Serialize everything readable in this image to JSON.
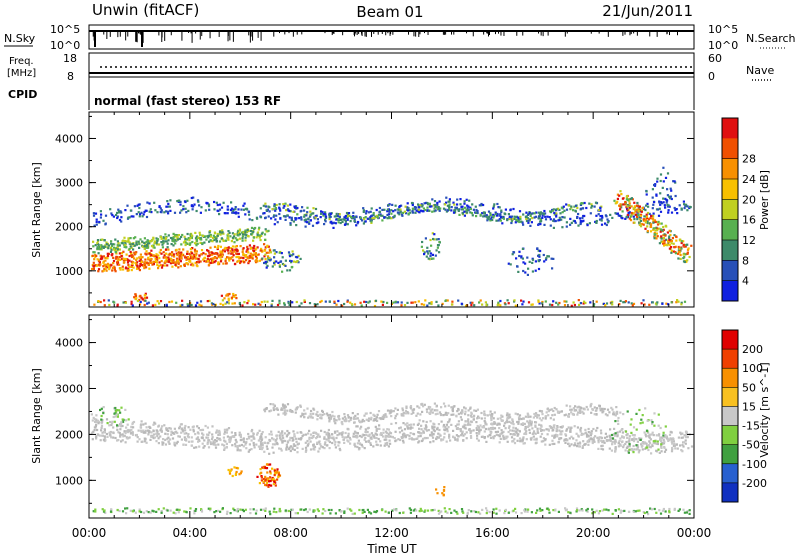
{
  "header": {
    "station": "Unwin (fitACF)",
    "beam": "Beam 01",
    "date": "21/Jun/2011"
  },
  "noise_panel": {
    "left_label": "N.Sky",
    "left_top": "10^5",
    "left_bottom": "10^0",
    "right_label": "N.Search",
    "right_top": "10^5",
    "right_bottom": "10^0"
  },
  "freq_panel": {
    "left_label_line1": "Freq.",
    "left_label_line2": "[MHz]",
    "left_top": "18",
    "left_bottom": "8",
    "right_label": "Nave",
    "right_top": "60",
    "right_bottom": "0"
  },
  "cpid_panel": {
    "label": "CPID",
    "text": "normal (fast stereo) 153 RF"
  },
  "chart_data": [
    {
      "type": "heatmap",
      "title": "Power",
      "ylabel": "Slant Range [km]",
      "xlabel": "Time UT",
      "x_ticks": [
        "00:00",
        "04:00",
        "08:00",
        "12:00",
        "16:00",
        "20:00",
        "00:00"
      ],
      "y_ticks": [
        1000,
        2000,
        3000,
        4000
      ],
      "xlim_hours": [
        0,
        24
      ],
      "ylim": [
        180,
        4600
      ],
      "colorbar": {
        "label": "Power [dB]",
        "ticks": [
          "4",
          "8",
          "12",
          "16",
          "20",
          "24",
          "28"
        ],
        "colors": [
          "#1020e0",
          "#2850b8",
          "#3d8a6a",
          "#58b050",
          "#c0d020",
          "#f8c000",
          "#f89000",
          "#f05000",
          "#e01010"
        ]
      }
    },
    {
      "type": "heatmap",
      "title": "Velocity",
      "ylabel": "Slant Range [km]",
      "xlabel": "Time UT",
      "x_ticks": [
        "00:00",
        "04:00",
        "08:00",
        "12:00",
        "16:00",
        "20:00",
        "00:00"
      ],
      "y_ticks": [
        1000,
        2000,
        3000,
        4000
      ],
      "xlim_hours": [
        0,
        24
      ],
      "ylim": [
        180,
        4600
      ],
      "colorbar": {
        "label": "Velocity [m s^-1]",
        "ticks": [
          "200",
          "100",
          "50",
          "15",
          "-15",
          "-50",
          "-100",
          "-200"
        ],
        "colors": [
          "#1030c0",
          "#2860d0",
          "#40a040",
          "#80d040",
          "#c8c8c8",
          "#f8c020",
          "#f89000",
          "#f04000",
          "#e00000"
        ]
      }
    }
  ]
}
